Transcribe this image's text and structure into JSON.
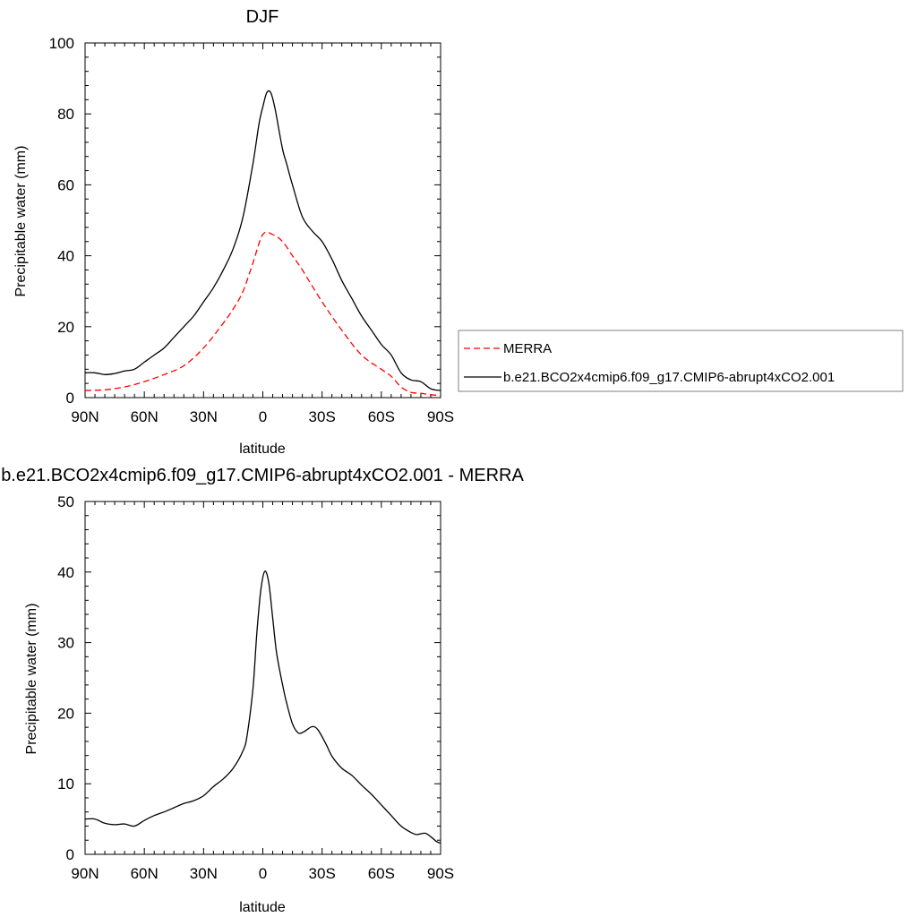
{
  "colors": {
    "merra": "#ff0000",
    "model": "#000000",
    "axis": "#000000",
    "legend_border": "#808080"
  },
  "chart_data": [
    {
      "type": "line",
      "title": "DJF",
      "xlabel": "latitude",
      "ylabel": "Precipitable water (mm)",
      "xlim": [
        -90,
        90
      ],
      "ylim": [
        0,
        100
      ],
      "xticks": [
        -90,
        -60,
        -30,
        0,
        30,
        60,
        90
      ],
      "xtick_labels": [
        "90N",
        "60N",
        "30N",
        "0",
        "30S",
        "60S",
        "90S"
      ],
      "yticks": [
        0,
        20,
        40,
        60,
        80,
        100
      ],
      "ytick_labels": [
        "0",
        "20",
        "40",
        "60",
        "80",
        "100"
      ],
      "legend_position": "right",
      "series": [
        {
          "name": "MERRA",
          "style": "dashed",
          "color": "#ff0000",
          "x": [
            -90,
            -80,
            -70,
            -60,
            -50,
            -40,
            -30,
            -20,
            -15,
            -10,
            -5,
            0,
            5,
            10,
            15,
            20,
            30,
            40,
            50,
            60,
            65,
            70,
            75,
            80,
            85,
            90
          ],
          "y": [
            2,
            2.2,
            3,
            4.5,
            6.5,
            9,
            14,
            21,
            25,
            30,
            38,
            46,
            46,
            44,
            40,
            36,
            27,
            19,
            12,
            8,
            6,
            3,
            1.5,
            1.2,
            0.8,
            0.6
          ]
        },
        {
          "name": "b.e21.BCO2x4cmip6.f09_g17.CMIP6-abrupt4xCO2.001",
          "style": "solid",
          "color": "#000000",
          "x": [
            -90,
            -85,
            -80,
            -75,
            -70,
            -65,
            -60,
            -55,
            -50,
            -45,
            -40,
            -35,
            -30,
            -25,
            -20,
            -15,
            -10,
            -5,
            -2,
            0,
            2,
            4,
            6,
            8,
            10,
            12,
            15,
            20,
            25,
            30,
            35,
            40,
            45,
            50,
            55,
            60,
            65,
            70,
            75,
            80,
            85,
            90
          ],
          "y": [
            7,
            7,
            6.5,
            6.8,
            7.5,
            8,
            10,
            12,
            14,
            17,
            20,
            23,
            27,
            31,
            36,
            42,
            51,
            66,
            77,
            82,
            86,
            86,
            82,
            76,
            70,
            66,
            60,
            51,
            47,
            44,
            39,
            33,
            28,
            23,
            19,
            15,
            12,
            7,
            5,
            4.5,
            2.5,
            2
          ]
        }
      ]
    },
    {
      "type": "line",
      "title": "b.e21.BCO2x4cmip6.f09_g17.CMIP6-abrupt4xCO2.001 - MERRA",
      "xlabel": "latitude",
      "ylabel": "Precipitable water (mm)",
      "xlim": [
        -90,
        90
      ],
      "ylim": [
        0,
        50
      ],
      "xticks": [
        -90,
        -60,
        -30,
        0,
        30,
        60,
        90
      ],
      "xtick_labels": [
        "90N",
        "60N",
        "30N",
        "0",
        "30S",
        "60S",
        "90S"
      ],
      "yticks": [
        0,
        10,
        20,
        30,
        40,
        50
      ],
      "ytick_labels": [
        "0",
        "10",
        "20",
        "30",
        "40",
        "50"
      ],
      "series": [
        {
          "style": "solid",
          "color": "#000000",
          "x": [
            -90,
            -85,
            -80,
            -75,
            -70,
            -65,
            -60,
            -55,
            -50,
            -45,
            -40,
            -35,
            -30,
            -25,
            -20,
            -15,
            -10,
            -8,
            -5,
            -3,
            -1,
            1,
            3,
            5,
            7,
            10,
            12,
            15,
            18,
            21,
            25,
            28,
            32,
            35,
            40,
            45,
            50,
            55,
            60,
            65,
            70,
            75,
            78,
            82,
            85,
            88,
            90
          ],
          "y": [
            5,
            5,
            4.4,
            4.2,
            4.3,
            4.0,
            4.8,
            5.5,
            6.0,
            6.6,
            7.2,
            7.6,
            8.3,
            9.6,
            10.7,
            12.2,
            14.7,
            16.8,
            23.5,
            31.5,
            37.5,
            40.1,
            38.5,
            33.5,
            28.5,
            24.0,
            21.5,
            18.5,
            17.2,
            17.4,
            18.1,
            17.6,
            15.6,
            13.9,
            12.2,
            11.2,
            9.8,
            8.5,
            7.0,
            5.5,
            4.0,
            3.1,
            2.8,
            3.0,
            2.5,
            1.8,
            1.6
          ]
        }
      ]
    }
  ]
}
